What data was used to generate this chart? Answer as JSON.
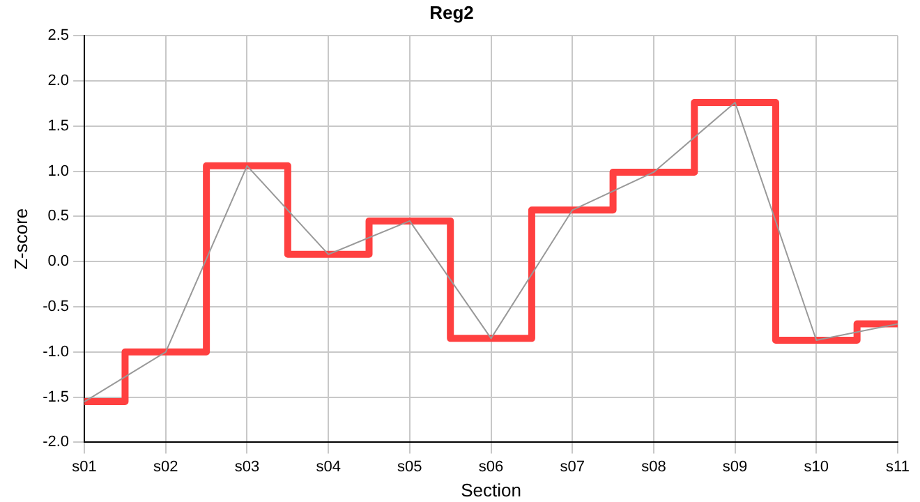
{
  "chart_data": {
    "type": "line",
    "title": "Reg2",
    "xlabel": "Section",
    "ylabel": "Z-score",
    "categories": [
      "s01",
      "s02",
      "s03",
      "s04",
      "s05",
      "s06",
      "s07",
      "s08",
      "s09",
      "s10",
      "s11"
    ],
    "series": [
      {
        "type": "line",
        "color": "#999999",
        "values": [
          -1.55,
          -1.0,
          1.06,
          0.08,
          0.45,
          -0.85,
          0.57,
          0.99,
          1.76,
          -0.87,
          -0.69
        ]
      },
      {
        "type": "step",
        "color": "#ff4040",
        "values": [
          -1.55,
          -1.0,
          1.06,
          0.08,
          0.45,
          -0.85,
          0.57,
          0.99,
          1.76,
          -0.87,
          -0.69
        ]
      }
    ],
    "ylim": [
      -2,
      2.5
    ],
    "yticks": [
      {
        "value": -2,
        "label": "-2.0"
      },
      {
        "value": -1.5,
        "label": "-1.5"
      },
      {
        "value": -1,
        "label": "-1.0"
      },
      {
        "value": -0.5,
        "label": "-0.5"
      },
      {
        "value": 0,
        "label": "0.0"
      },
      {
        "value": 0.5,
        "label": "0.5"
      },
      {
        "value": 1,
        "label": "1.0"
      },
      {
        "value": 1.5,
        "label": "1.5"
      },
      {
        "value": 2,
        "label": "2.0"
      },
      {
        "value": 2.5,
        "label": "2.5"
      }
    ],
    "grid": true
  }
}
